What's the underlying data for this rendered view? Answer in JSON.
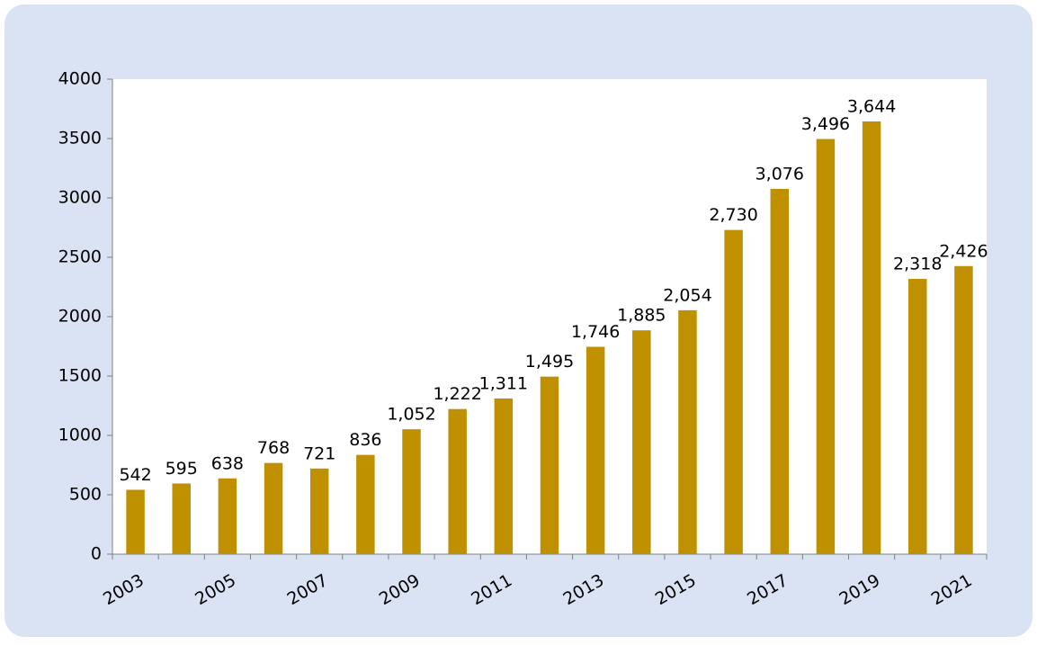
{
  "chart_data": {
    "type": "bar",
    "categories": [
      "2003",
      null,
      "2005",
      null,
      "2007",
      null,
      "2009",
      null,
      "2011",
      null,
      "2013",
      null,
      "2015",
      null,
      "2017",
      null,
      "2019",
      null,
      "2021"
    ],
    "values": [
      542,
      595,
      638,
      768,
      721,
      836,
      1052,
      1222,
      1311,
      1495,
      1746,
      1885,
      2054,
      2730,
      3076,
      3496,
      3644,
      2318,
      2426
    ],
    "value_labels": [
      "542",
      "595",
      "638",
      "768",
      "721",
      "836",
      "1,052",
      "1,222",
      "1,311",
      "1,495",
      "1,746",
      "1,885",
      "2,054",
      "2,730",
      "3,076",
      "3,496",
      "3,644",
      "2,318",
      "2,426"
    ],
    "color": "#bf9000",
    "ylim": [
      0,
      4000
    ],
    "yticks": [
      0,
      500,
      1000,
      1500,
      2000,
      2500,
      3000,
      3500,
      4000
    ],
    "grid": false
  }
}
